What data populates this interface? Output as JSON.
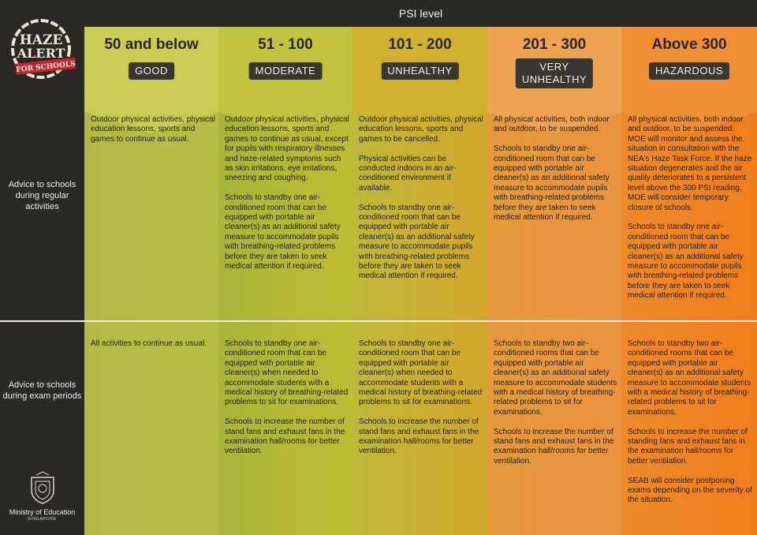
{
  "header": {
    "title": "PSI level"
  },
  "logo": {
    "line1": "HAZE",
    "line2": "ALERT",
    "banner": "FOR SCHOOLS"
  },
  "rows": {
    "regular_label": "Advice to schools during regular activities",
    "exam_label": "Advice to schools during exam periods"
  },
  "footer": {
    "ministry": "Ministry of Education",
    "country": "SINGAPORE"
  },
  "colors": {
    "good": "#b6bb3d",
    "moderate": "#bdbb33",
    "unhealthy": "#d0ae2c",
    "very_unhealthy": "#e99538",
    "hazardous": "#ef8422",
    "badge_bg": "#3a3632"
  },
  "levels": [
    {
      "range": "50 and below",
      "label": "GOOD",
      "regular": [
        "Outdoor physical activities, physical education lessons, sports and games to continue as usual."
      ],
      "exam": [
        "All activities to continue as usual."
      ]
    },
    {
      "range": "51 - 100",
      "label": "MODERATE",
      "regular": [
        "Outdoor physical activities, physical education lessons, sports and games to continue as usual, except for pupils with respiratory illnesses and haze-related symptoms such as skin irritations, eye irritations, sneezing and coughing.",
        "Schools to standby one air-conditioned room that can be equipped with portable air cleaner(s) as an additional safety measure to accommodate pupils with breathing-related problems before they are taken to seek medical attention if required."
      ],
      "exam": [
        "Schools to standby one air-conditioned room that can be equipped with portable air cleaner(s) when needed to accommodate students with a medical history of breathing-related problems to sit for examinations.",
        "Schools to increase the number of stand fans and exhaust fans in the examination hall/rooms for better ventilation."
      ]
    },
    {
      "range": "101 - 200",
      "label": "UNHEALTHY",
      "regular": [
        "Outdoor physical activities, physical education lessons, sports and games to be cancelled.",
        "Physical activities can be conducted indoors in an air-conditioned environment if available.",
        "Schools to standby one air-conditioned room that can be equipped with portable air cleaner(s) as an additional safety measure to accommodate pupils with breathing-related problems before they are taken to seek medical attention if required."
      ],
      "exam": [
        "Schools to standby one air-conditioned room that can be equipped with portable air cleaner(s) when needed to accommodate students with a medical history of breathing-related problems to sit for examinations.",
        "Schools to increase the number of stand fans and exhaust fans in the examination hall/rooms for better ventilation."
      ]
    },
    {
      "range": "201 - 300",
      "label": "VERY UNHEALTHY",
      "regular": [
        "All physical activities, both indoor and outdoor, to be suspended.",
        "Schools to standby one air-conditioned room that can be equipped with portable air cleaner(s) as an additional safety measure to accommodate pupils with breathing-related problems before they are taken to seek medical attention if required."
      ],
      "exam": [
        "Schools to standby two air-conditioned rooms that can be equipped with portable air cleaner(s) as an additional safety measure to accommodate students with a medical history of breathing-related problems to sit for examinations.",
        "Schools to increase the number of stand fans and exhaust fans in the examination hall/rooms for better ventilation."
      ]
    },
    {
      "range": "Above 300",
      "label": "HAZARDOUS",
      "regular": [
        "All physical activities, both indoor and outdoor, to be suspended. MOE will monitor and assess the situation in consultation with the NEA's Haze Task Force. If the haze situation degenerates and the air quality deteriorates to a persistent level above the 300 PSI reading, MOE will consider temporary closure of schools.",
        "Schools to standby one air-conditioned room that can be equipped with portable air cleaner(s) as an additional safety measure to accommodate pupils with breathing-related problems before they are taken to seek medical attention if required."
      ],
      "exam": [
        "Schools to standby two air-conditioned rooms that can be equipped with portable air cleaner(s) as an additional safety measure to accommodate students with a medical history of breathing-related problems to sit for examinations.",
        "Schools to increase the number of standing fans and exhaust fans in the examination hall/rooms for better ventilation.",
        "SEAB will consider postponing exams depending on the severity of the situation."
      ]
    }
  ]
}
